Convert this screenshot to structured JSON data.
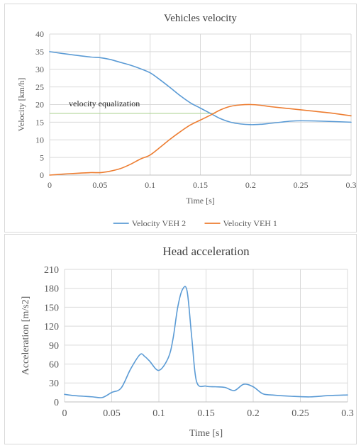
{
  "chart_data": [
    {
      "type": "line",
      "title": "Vehicles velocity",
      "xlabel": "Time [s]",
      "ylabel": "Velocity [km/h]",
      "xlim": [
        0,
        0.3
      ],
      "ylim": [
        0,
        40
      ],
      "xticks": [
        0,
        0.05,
        0.1,
        0.15,
        0.2,
        0.25,
        0.3
      ],
      "xtick_labels": [
        "0",
        "0.05",
        "0.1",
        "0.15",
        "0.2",
        "0.25",
        "0.3"
      ],
      "yticks": [
        0,
        5,
        10,
        15,
        20,
        25,
        30,
        35,
        40
      ],
      "ytick_labels": [
        "0",
        "5",
        "10",
        "15",
        "20",
        "25",
        "30",
        "35",
        "40"
      ],
      "grid": true,
      "legend_position": "bottom",
      "annotation": {
        "text": "velocity equalization",
        "y": 17.5,
        "x_start": 0,
        "x_end": 0.165
      },
      "series": [
        {
          "name": "Velocity VEH 2",
          "color": "#5b9bd5",
          "x": [
            0,
            0.02,
            0.04,
            0.05,
            0.06,
            0.07,
            0.08,
            0.09,
            0.1,
            0.11,
            0.12,
            0.13,
            0.14,
            0.15,
            0.16,
            0.17,
            0.18,
            0.19,
            0.2,
            0.21,
            0.22,
            0.23,
            0.24,
            0.25,
            0.27,
            0.3
          ],
          "y": [
            35,
            34.2,
            33.5,
            33.3,
            32.8,
            32,
            31.2,
            30.2,
            29,
            27,
            24.8,
            22.5,
            20.5,
            19,
            17.5,
            16,
            15,
            14.5,
            14.3,
            14.4,
            14.7,
            15,
            15.3,
            15.4,
            15.3,
            15
          ]
        },
        {
          "name": "Velocity VEH 1",
          "color": "#ed7d31",
          "x": [
            0,
            0.02,
            0.04,
            0.05,
            0.06,
            0.07,
            0.08,
            0.09,
            0.1,
            0.11,
            0.12,
            0.13,
            0.14,
            0.15,
            0.16,
            0.17,
            0.18,
            0.19,
            0.2,
            0.21,
            0.22,
            0.24,
            0.26,
            0.28,
            0.3
          ],
          "y": [
            0,
            0.4,
            0.7,
            0.7,
            1.1,
            1.8,
            3,
            4.5,
            5.7,
            7.9,
            10.2,
            12.3,
            14.2,
            15.6,
            17,
            18.5,
            19.5,
            19.9,
            20,
            19.8,
            19.4,
            18.8,
            18.2,
            17.6,
            16.8
          ]
        }
      ]
    },
    {
      "type": "line",
      "title": "Head acceleration",
      "xlabel": "Time [s]",
      "ylabel": "Acceleration [m/s2]",
      "xlim": [
        0,
        0.3
      ],
      "ylim": [
        0,
        210
      ],
      "xticks": [
        0,
        0.05,
        0.1,
        0.15,
        0.2,
        0.25,
        0.3
      ],
      "xtick_labels": [
        "0",
        "0.05",
        "0.1",
        "0.15",
        "0.2",
        "0.25",
        "0.3"
      ],
      "yticks": [
        0,
        30,
        60,
        90,
        120,
        150,
        180,
        210
      ],
      "ytick_labels": [
        "0",
        "30",
        "60",
        "90",
        "120",
        "150",
        "180",
        "210"
      ],
      "grid": true,
      "legend_position": "none",
      "series": [
        {
          "color": "#5b9bd5",
          "x": [
            0,
            0.01,
            0.02,
            0.03,
            0.04,
            0.05,
            0.06,
            0.07,
            0.08,
            0.085,
            0.09,
            0.1,
            0.11,
            0.115,
            0.12,
            0.125,
            0.13,
            0.135,
            0.14,
            0.15,
            0.16,
            0.17,
            0.18,
            0.19,
            0.2,
            0.21,
            0.22,
            0.24,
            0.26,
            0.28,
            0.3
          ],
          "y": [
            12,
            10,
            9,
            8,
            7,
            15,
            22,
            52,
            75,
            72,
            65,
            50,
            70,
            100,
            150,
            178,
            175,
            100,
            32,
            25,
            24,
            23,
            18,
            28,
            24,
            13,
            11,
            9,
            8,
            10,
            11
          ]
        }
      ]
    }
  ]
}
